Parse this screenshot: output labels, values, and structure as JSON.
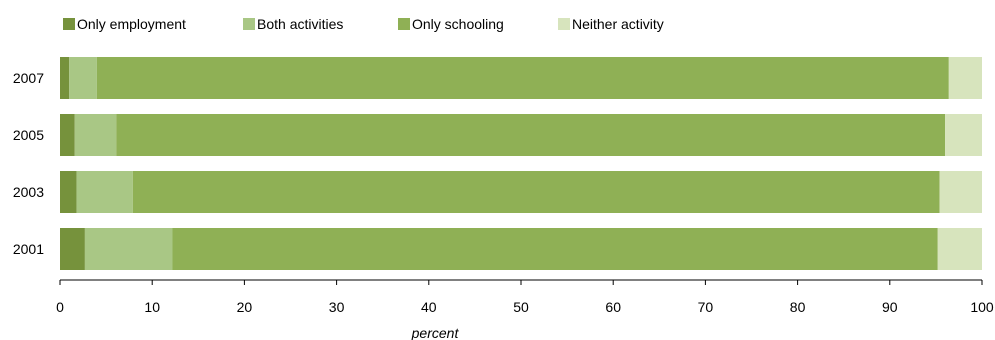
{
  "chart_data": {
    "type": "bar",
    "orientation": "horizontal",
    "stacked": true,
    "categories": [
      "2007",
      "2005",
      "2003",
      "2001"
    ],
    "series": [
      {
        "name": "Only employment",
        "color": "#76923c",
        "values": [
          1.0,
          1.6,
          1.8,
          2.7
        ]
      },
      {
        "name": "Both activities",
        "color": "#a9c785",
        "values": [
          3.0,
          4.5,
          6.1,
          9.5
        ]
      },
      {
        "name": "Only schooling",
        "color": "#8fb055",
        "values": [
          92.4,
          89.9,
          87.5,
          83.0
        ]
      },
      {
        "name": "Neither activity",
        "color": "#d7e4bd",
        "values": [
          3.6,
          4.0,
          4.6,
          4.8
        ]
      }
    ],
    "xlabel": "percent",
    "ylabel": "",
    "xlim": [
      0,
      100
    ],
    "xticks": [
      "0",
      "10",
      "20",
      "30",
      "40",
      "50",
      "60",
      "70",
      "80",
      "90",
      "100"
    ],
    "grid": false,
    "legend_position": "top"
  }
}
